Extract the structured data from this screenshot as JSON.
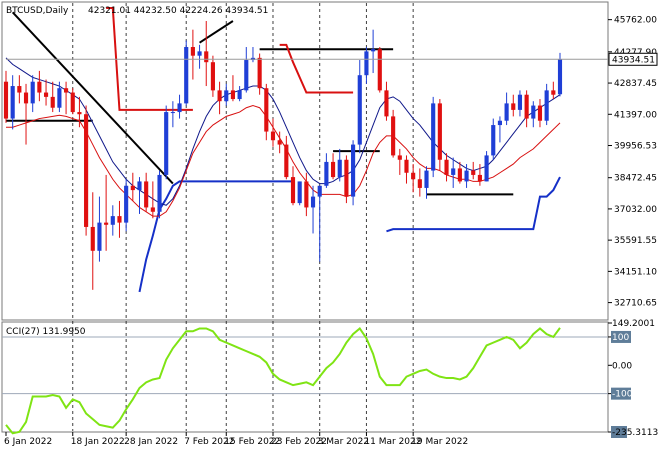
{
  "header": {
    "symbol_label": "BTCUSD,Daily",
    "ohlc_label": "42321.01 44232.50 42224.26 43934.51"
  },
  "cci_panel": {
    "label": "CCI(27) 131.9950",
    "scale_labels": [
      "149.2001",
      "100",
      "0.00",
      "-100",
      "-235.3113"
    ]
  },
  "chart_data": [
    {
      "type": "candlestick",
      "title": "BTCUSD,Daily",
      "ylim": [
        32000,
        46300
      ],
      "y_tick_labels": [
        "45762.00",
        "44277.90",
        "42837.45",
        "41397.00",
        "39956.53",
        "38472.45",
        "37032.00",
        "35591.55",
        "34151.10",
        "32710.65"
      ],
      "current_price_label": "43934.51",
      "x_tick_labels": [
        "6 Jan 2022",
        "18 Jan 2022",
        "28 Jan 2022",
        "7 Feb 2022",
        "15 Feb 2022",
        "23 Feb 2022",
        "3 Mar 2022",
        "11 Mar 2022",
        "19 Mar 2022"
      ],
      "colors": {
        "up": "#1f3fd6",
        "down": "#e01010",
        "ma_fast": "#d81010",
        "ma_slow": "#10188a",
        "stop": "#d81010",
        "support": "#1530c8",
        "trendline": "#000000"
      },
      "candles": [
        {
          "o": 42900,
          "h": 43400,
          "l": 41000,
          "c": 41200
        },
        {
          "o": 41200,
          "h": 43200,
          "l": 40700,
          "c": 42700
        },
        {
          "o": 42700,
          "h": 43200,
          "l": 41900,
          "c": 42400
        },
        {
          "o": 42400,
          "h": 42800,
          "l": 40000,
          "c": 41900
        },
        {
          "o": 41900,
          "h": 43200,
          "l": 41500,
          "c": 42900
        },
        {
          "o": 42900,
          "h": 43400,
          "l": 42000,
          "c": 42400
        },
        {
          "o": 42400,
          "h": 43000,
          "l": 41800,
          "c": 42200
        },
        {
          "o": 42200,
          "h": 42900,
          "l": 41500,
          "c": 41700
        },
        {
          "o": 41700,
          "h": 42900,
          "l": 41500,
          "c": 42600
        },
        {
          "o": 42600,
          "h": 42900,
          "l": 41400,
          "c": 42400
        },
        {
          "o": 42400,
          "h": 42600,
          "l": 41400,
          "c": 41500
        },
        {
          "o": 41500,
          "h": 42200,
          "l": 40800,
          "c": 41400
        },
        {
          "o": 41400,
          "h": 41800,
          "l": 35800,
          "c": 36200
        },
        {
          "o": 36200,
          "h": 37800,
          "l": 33300,
          "c": 35100
        },
        {
          "o": 35100,
          "h": 37600,
          "l": 34600,
          "c": 36400
        },
        {
          "o": 36400,
          "h": 38600,
          "l": 35100,
          "c": 36300
        },
        {
          "o": 36300,
          "h": 37200,
          "l": 35800,
          "c": 36700
        },
        {
          "o": 36700,
          "h": 37400,
          "l": 35700,
          "c": 36400
        },
        {
          "o": 36400,
          "h": 38400,
          "l": 36000,
          "c": 38100
        },
        {
          "o": 38100,
          "h": 38700,
          "l": 37400,
          "c": 37900
        },
        {
          "o": 37900,
          "h": 38500,
          "l": 36800,
          "c": 38300
        },
        {
          "o": 38300,
          "h": 38700,
          "l": 36900,
          "c": 37100
        },
        {
          "o": 37100,
          "h": 38300,
          "l": 36600,
          "c": 36900
        },
        {
          "o": 36900,
          "h": 38800,
          "l": 36600,
          "c": 38600
        },
        {
          "o": 38600,
          "h": 41800,
          "l": 38400,
          "c": 41500
        },
        {
          "o": 41500,
          "h": 42000,
          "l": 40800,
          "c": 41500
        },
        {
          "o": 41500,
          "h": 42300,
          "l": 41200,
          "c": 41900
        },
        {
          "o": 41900,
          "h": 44800,
          "l": 41800,
          "c": 44500
        },
        {
          "o": 44500,
          "h": 45300,
          "l": 43000,
          "c": 44100
        },
        {
          "o": 44100,
          "h": 44600,
          "l": 43500,
          "c": 44300
        },
        {
          "o": 44300,
          "h": 45700,
          "l": 42700,
          "c": 43800
        },
        {
          "o": 43800,
          "h": 44100,
          "l": 42200,
          "c": 42500
        },
        {
          "o": 42500,
          "h": 42900,
          "l": 41400,
          "c": 42000
        },
        {
          "o": 42000,
          "h": 42800,
          "l": 41800,
          "c": 42500
        },
        {
          "o": 42500,
          "h": 43200,
          "l": 42000,
          "c": 42100
        },
        {
          "o": 42100,
          "h": 42700,
          "l": 42000,
          "c": 42500
        },
        {
          "o": 42500,
          "h": 44500,
          "l": 42400,
          "c": 43900
        },
        {
          "o": 43900,
          "h": 44500,
          "l": 43800,
          "c": 44000
        },
        {
          "o": 44000,
          "h": 44200,
          "l": 42300,
          "c": 42600
        },
        {
          "o": 42600,
          "h": 42800,
          "l": 40200,
          "c": 40600
        },
        {
          "o": 40600,
          "h": 41200,
          "l": 39900,
          "c": 40200
        },
        {
          "o": 40200,
          "h": 40600,
          "l": 39600,
          "c": 40000
        },
        {
          "o": 40000,
          "h": 40400,
          "l": 38400,
          "c": 38500
        },
        {
          "o": 38500,
          "h": 39000,
          "l": 37200,
          "c": 37300
        },
        {
          "o": 37300,
          "h": 38300,
          "l": 37200,
          "c": 38300
        },
        {
          "o": 38300,
          "h": 38700,
          "l": 36700,
          "c": 37100
        },
        {
          "o": 37100,
          "h": 38100,
          "l": 35900,
          "c": 37600
        },
        {
          "o": 37600,
          "h": 38100,
          "l": 34600,
          "c": 38100
        },
        {
          "o": 38100,
          "h": 39600,
          "l": 38000,
          "c": 39200
        },
        {
          "o": 39200,
          "h": 39600,
          "l": 38400,
          "c": 38500
        },
        {
          "o": 38500,
          "h": 39800,
          "l": 38300,
          "c": 39300
        },
        {
          "o": 39300,
          "h": 39500,
          "l": 37300,
          "c": 37600
        },
        {
          "o": 37600,
          "h": 40200,
          "l": 37200,
          "c": 40000
        },
        {
          "o": 40000,
          "h": 43900,
          "l": 39600,
          "c": 43200
        },
        {
          "o": 43200,
          "h": 44500,
          "l": 42800,
          "c": 44300
        },
        {
          "o": 44300,
          "h": 45300,
          "l": 43300,
          "c": 44400
        },
        {
          "o": 44400,
          "h": 44500,
          "l": 42400,
          "c": 42500
        },
        {
          "o": 42500,
          "h": 42900,
          "l": 41100,
          "c": 41300
        },
        {
          "o": 41300,
          "h": 41600,
          "l": 39400,
          "c": 39500
        },
        {
          "o": 39500,
          "h": 39800,
          "l": 38600,
          "c": 39300
        },
        {
          "o": 39300,
          "h": 39500,
          "l": 38200,
          "c": 38700
        },
        {
          "o": 38700,
          "h": 39100,
          "l": 37800,
          "c": 38400
        },
        {
          "o": 38400,
          "h": 38900,
          "l": 37600,
          "c": 38000
        },
        {
          "o": 38000,
          "h": 39000,
          "l": 37500,
          "c": 38800
        },
        {
          "o": 38800,
          "h": 42200,
          "l": 38500,
          "c": 41900
        },
        {
          "o": 41900,
          "h": 42100,
          "l": 38800,
          "c": 39300
        },
        {
          "o": 39300,
          "h": 39600,
          "l": 38300,
          "c": 38600
        },
        {
          "o": 38600,
          "h": 39400,
          "l": 38000,
          "c": 38900
        },
        {
          "o": 38900,
          "h": 39200,
          "l": 38200,
          "c": 38300
        },
        {
          "o": 38300,
          "h": 39100,
          "l": 38000,
          "c": 38800
        },
        {
          "o": 38800,
          "h": 39200,
          "l": 38400,
          "c": 38600
        },
        {
          "o": 38600,
          "h": 39100,
          "l": 38100,
          "c": 38300
        },
        {
          "o": 38300,
          "h": 39700,
          "l": 38300,
          "c": 39500
        },
        {
          "o": 39500,
          "h": 41200,
          "l": 39300,
          "c": 40900
        },
        {
          "o": 40900,
          "h": 41300,
          "l": 40100,
          "c": 41100
        },
        {
          "o": 41100,
          "h": 42400,
          "l": 40900,
          "c": 41900
        },
        {
          "o": 41900,
          "h": 42300,
          "l": 41300,
          "c": 41600
        },
        {
          "o": 41600,
          "h": 42500,
          "l": 41300,
          "c": 42300
        },
        {
          "o": 42300,
          "h": 42500,
          "l": 40800,
          "c": 41200
        },
        {
          "o": 41200,
          "h": 42000,
          "l": 40800,
          "c": 41800
        },
        {
          "o": 41800,
          "h": 42100,
          "l": 40800,
          "c": 41100
        },
        {
          "o": 41100,
          "h": 42800,
          "l": 40900,
          "c": 42500
        },
        {
          "o": 42500,
          "h": 42900,
          "l": 42100,
          "c": 42300
        },
        {
          "o": 42321.01,
          "h": 44232.5,
          "l": 42224.26,
          "c": 43934.51
        }
      ],
      "ma_fast": [
        40800,
        40800,
        40900,
        41000,
        41100,
        41200,
        41250,
        41300,
        41350,
        41300,
        41200,
        41100,
        40600,
        40000,
        39400,
        38900,
        38400,
        38000,
        37700,
        37400,
        37100,
        36900,
        36700,
        36700,
        36900,
        37400,
        38000,
        38800,
        39600,
        40100,
        40600,
        40900,
        41100,
        41300,
        41400,
        41500,
        41700,
        41800,
        41700,
        41300,
        40800,
        40300,
        39800,
        39200,
        38700,
        38300,
        37900,
        37700,
        37700,
        37700,
        37700,
        37600,
        37700,
        38100,
        38800,
        39600,
        40100,
        40400,
        40400,
        40100,
        39800,
        39400,
        39100,
        38900,
        38900,
        38800,
        38600,
        38500,
        38400,
        38400,
        38300,
        38300,
        38400,
        38500,
        38700,
        38900,
        39100,
        39400,
        39600,
        39800,
        40100,
        40400,
        40700,
        41000
      ],
      "ma_slow": [
        44000,
        43700,
        43500,
        43300,
        43100,
        43000,
        42900,
        42800,
        42700,
        42500,
        42300,
        42100,
        41600,
        41000,
        40400,
        39800,
        39200,
        38800,
        38400,
        38100,
        37900,
        37700,
        37500,
        37300,
        37200,
        37500,
        38100,
        38900,
        39800,
        40600,
        41300,
        41800,
        42100,
        42300,
        42400,
        42500,
        42600,
        42700,
        42700,
        42500,
        42100,
        41500,
        40800,
        40100,
        39400,
        38800,
        38400,
        38200,
        38200,
        38300,
        38500,
        38600,
        38800,
        39300,
        40100,
        40900,
        41700,
        42100,
        42200,
        42000,
        41600,
        41200,
        40900,
        40500,
        40100,
        39800,
        39500,
        39300,
        39100,
        38900,
        38800,
        38900,
        39000,
        39300,
        39700,
        40100,
        40500,
        40900,
        41300,
        41500,
        41700,
        41900,
        42100,
        42300
      ],
      "support_line": {
        "start_index": 20,
        "values": [
          null,
          null,
          null,
          null,
          null,
          null,
          null,
          null,
          null,
          null,
          null,
          null,
          null,
          null,
          null,
          null,
          null,
          null,
          null,
          null,
          33200,
          34700,
          35800,
          37000,
          37500,
          38100,
          38300,
          38300,
          38300,
          38300,
          38300,
          38300,
          38300,
          38300,
          38300,
          38300,
          38300,
          38300,
          38300,
          38300,
          38300,
          38300,
          38300,
          38300,
          null,
          null,
          null,
          null,
          null,
          null,
          null,
          null,
          null,
          null,
          null,
          null,
          null,
          36000,
          36100,
          36100,
          36100,
          36100,
          36100,
          36100,
          36100,
          36100,
          36100,
          36100,
          36100,
          36100,
          36100,
          36100,
          36100,
          36100,
          36100,
          36100,
          36100,
          36100,
          36100,
          36100,
          37600,
          37600,
          37900,
          38500
        ]
      },
      "stop_line": [
        null,
        null,
        null,
        null,
        null,
        null,
        null,
        null,
        null,
        null,
        null,
        null,
        null,
        null,
        null,
        46300,
        46300,
        41600,
        41600,
        41600,
        41600,
        41600,
        41600,
        41600,
        41600,
        41600,
        41600,
        41600,
        41600,
        null,
        null,
        null,
        null,
        null,
        null,
        null,
        null,
        null,
        null,
        null,
        null,
        44600,
        44600,
        43800,
        43100,
        42400,
        42400,
        42400,
        42400,
        42400,
        42400,
        42400,
        42400,
        null,
        null,
        null,
        null,
        null,
        null,
        null,
        null,
        null,
        null,
        null,
        null,
        null,
        null,
        null,
        null,
        null,
        null,
        null,
        null,
        null,
        null,
        null,
        null,
        null,
        null,
        null,
        null,
        null,
        null,
        null,
        null
      ],
      "horizontal_levels": [
        {
          "value": 41100,
          "from": 0,
          "to": 13,
          "color": "#000000"
        },
        {
          "value": 44400,
          "from": 38,
          "to": 58,
          "color": "#000000"
        },
        {
          "value": 39700,
          "from": 49,
          "to": 56,
          "color": "#000000"
        },
        {
          "value": 37700,
          "from": 63,
          "to": 76,
          "color": "#000000"
        }
      ],
      "trendlines": [
        {
          "from_index": 1,
          "from_value": 46100,
          "to_index": 25,
          "to_value": 38200,
          "color": "#000000"
        },
        {
          "from_index": 29,
          "from_value": 44700,
          "to_index": 34,
          "to_value": 45700,
          "color": "#000000"
        }
      ]
    },
    {
      "type": "line",
      "title": "CCI(27) 131.9950",
      "ylim": [
        -235.3113,
        149.2001
      ],
      "levels": [
        100,
        -100
      ],
      "values": [
        -210,
        -240,
        -235,
        -200,
        -110,
        -110,
        -110,
        -105,
        -110,
        -150,
        -120,
        -130,
        -170,
        -190,
        -210,
        -215,
        -220,
        -195,
        -155,
        -120,
        -80,
        -60,
        -50,
        -45,
        20,
        60,
        90,
        120,
        120,
        130,
        130,
        120,
        90,
        80,
        70,
        60,
        50,
        40,
        30,
        10,
        -30,
        -50,
        -60,
        -70,
        -65,
        -60,
        -70,
        -40,
        -10,
        10,
        40,
        80,
        110,
        130,
        95,
        40,
        -40,
        -70,
        -70,
        -70,
        -40,
        -30,
        -20,
        -15,
        -30,
        -40,
        -45,
        -45,
        -50,
        -40,
        -10,
        30,
        70,
        80,
        90,
        100,
        90,
        60,
        80,
        110,
        130,
        110,
        100,
        132
      ]
    }
  ]
}
